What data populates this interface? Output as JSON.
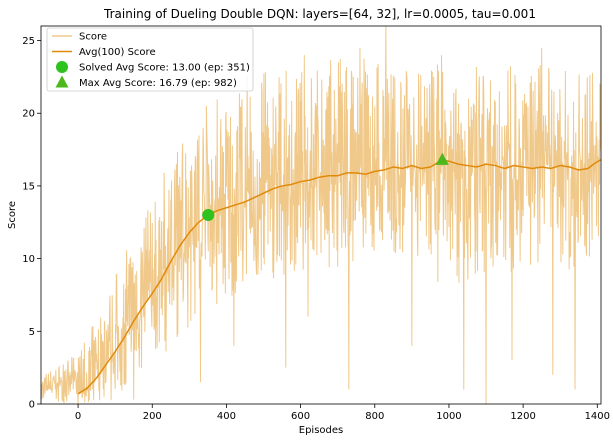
{
  "chart_data": {
    "type": "line",
    "title": "Training of Dueling Double DQN: layers=[64, 32], lr=0.0005, tau=0.001",
    "xlabel": "Episodes",
    "ylabel": "Score",
    "xlim": [
      -100,
      1410
    ],
    "ylim": [
      0,
      26
    ],
    "xticks": [
      0,
      200,
      400,
      600,
      800,
      1000,
      1200,
      1400
    ],
    "yticks": [
      0,
      5,
      10,
      15,
      20,
      25
    ],
    "grid": false,
    "legend_position": "top-left",
    "episodes": 1410,
    "colors": {
      "score": "#f0c98a",
      "avg": "#e08a0c",
      "solved": "#2ec21e",
      "max": "#4cb81c"
    },
    "legend": [
      {
        "label": "Score",
        "kind": "line",
        "color": "#f0c98a"
      },
      {
        "label": "Avg(100) Score",
        "kind": "line",
        "color": "#e08a0c"
      },
      {
        "label": "Solved Avg Score: 13.00 (ep: 351)",
        "kind": "circle",
        "color": "#2ec21e"
      },
      {
        "label": "Max Avg Score: 16.79 (ep: 982)",
        "kind": "triangle",
        "color": "#4cb81c"
      }
    ],
    "avg_points": [
      [
        0,
        0.7
      ],
      [
        25,
        1.1
      ],
      [
        50,
        1.8
      ],
      [
        75,
        2.7
      ],
      [
        100,
        3.6
      ],
      [
        125,
        4.6
      ],
      [
        150,
        5.7
      ],
      [
        175,
        6.7
      ],
      [
        200,
        7.6
      ],
      [
        225,
        8.6
      ],
      [
        250,
        9.8
      ],
      [
        275,
        10.9
      ],
      [
        300,
        11.8
      ],
      [
        325,
        12.5
      ],
      [
        351,
        13.0
      ],
      [
        375,
        13.3
      ],
      [
        400,
        13.5
      ],
      [
        425,
        13.7
      ],
      [
        450,
        13.9
      ],
      [
        475,
        14.2
      ],
      [
        500,
        14.5
      ],
      [
        525,
        14.8
      ],
      [
        550,
        15.0
      ],
      [
        575,
        15.1
      ],
      [
        600,
        15.3
      ],
      [
        625,
        15.4
      ],
      [
        650,
        15.6
      ],
      [
        675,
        15.7
      ],
      [
        700,
        15.7
      ],
      [
        725,
        15.9
      ],
      [
        750,
        15.9
      ],
      [
        775,
        15.8
      ],
      [
        800,
        16.0
      ],
      [
        825,
        16.1
      ],
      [
        850,
        16.3
      ],
      [
        875,
        16.2
      ],
      [
        900,
        16.4
      ],
      [
        925,
        16.2
      ],
      [
        950,
        16.3
      ],
      [
        982,
        16.79
      ],
      [
        1000,
        16.7
      ],
      [
        1025,
        16.5
      ],
      [
        1050,
        16.4
      ],
      [
        1075,
        16.3
      ],
      [
        1100,
        16.5
      ],
      [
        1125,
        16.4
      ],
      [
        1150,
        16.2
      ],
      [
        1175,
        16.4
      ],
      [
        1200,
        16.3
      ],
      [
        1225,
        16.2
      ],
      [
        1250,
        16.3
      ],
      [
        1275,
        16.2
      ],
      [
        1300,
        16.4
      ],
      [
        1325,
        16.3
      ],
      [
        1350,
        16.1
      ],
      [
        1375,
        16.2
      ],
      [
        1390,
        16.5
      ],
      [
        1409,
        16.8
      ]
    ],
    "score_envelope": [
      [
        -100,
        0,
        2
      ],
      [
        0,
        0,
        3.5
      ],
      [
        50,
        0,
        6
      ],
      [
        100,
        0,
        9
      ],
      [
        150,
        1,
        12
      ],
      [
        200,
        2,
        14
      ],
      [
        250,
        4,
        17
      ],
      [
        300,
        5,
        20
      ],
      [
        350,
        6,
        21
      ],
      [
        400,
        7,
        22
      ],
      [
        450,
        8,
        23
      ],
      [
        500,
        8,
        23
      ],
      [
        600,
        9,
        23
      ],
      [
        700,
        9,
        24
      ],
      [
        800,
        10,
        24
      ],
      [
        900,
        9,
        23
      ],
      [
        1000,
        8,
        24
      ],
      [
        1100,
        9,
        23
      ],
      [
        1200,
        9,
        24
      ],
      [
        1300,
        9,
        23
      ],
      [
        1409,
        10,
        23
      ]
    ],
    "score_extremes": [
      [
        0,
        0
      ],
      [
        70,
        0.5
      ],
      [
        150,
        0.3
      ],
      [
        330,
        1.5
      ],
      [
        420,
        4
      ],
      [
        560,
        2.5
      ],
      [
        620,
        6
      ],
      [
        730,
        1
      ],
      [
        830,
        26
      ],
      [
        900,
        4
      ],
      [
        1040,
        1
      ],
      [
        1100,
        0
      ],
      [
        1170,
        3
      ],
      [
        1280,
        2
      ],
      [
        1340,
        1
      ],
      [
        610,
        24
      ],
      [
        760,
        24.5
      ],
      [
        980,
        24
      ],
      [
        1250,
        24.5
      ]
    ],
    "solved_point": {
      "x": 351,
      "y": 13.0
    },
    "max_point": {
      "x": 982,
      "y": 16.79
    }
  }
}
